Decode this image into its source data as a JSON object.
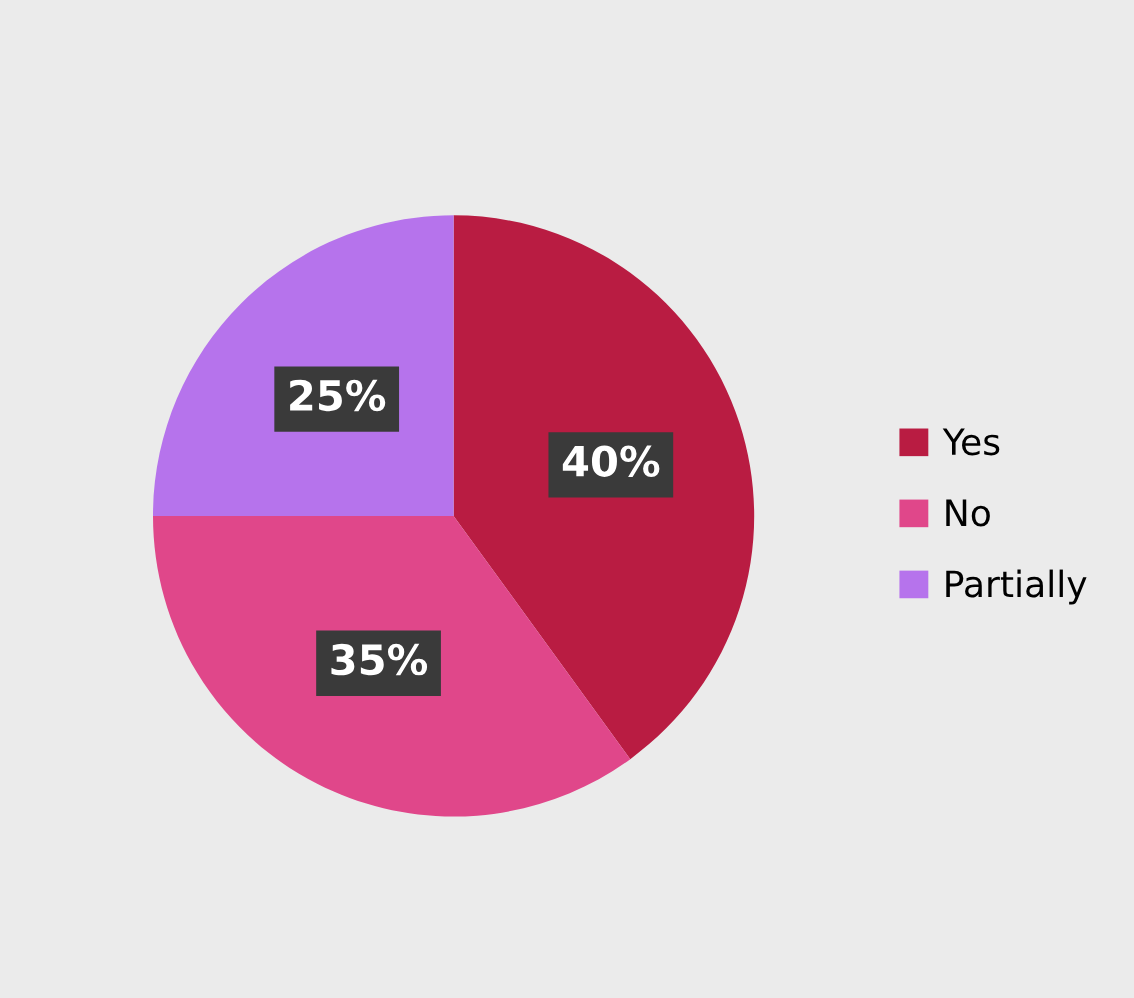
{
  "chart_data": {
    "type": "pie",
    "categories": [
      "Yes",
      "No",
      "Partially"
    ],
    "values": [
      40,
      35,
      25
    ],
    "colors": [
      "#b91c42",
      "#e0478a",
      "#b673ec"
    ],
    "value_labels": [
      "40%",
      "35%",
      "25%"
    ],
    "legend": "right"
  }
}
